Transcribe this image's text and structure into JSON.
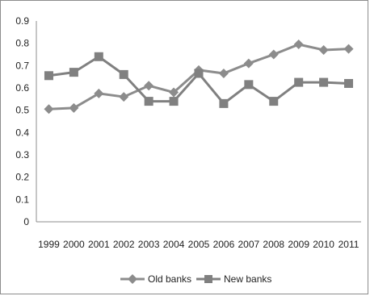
{
  "chart_data": {
    "type": "line",
    "title": "",
    "xlabel": "",
    "ylabel": "",
    "x": [
      "1999",
      "2000",
      "2001",
      "2002",
      "2003",
      "2004",
      "2005",
      "2006",
      "2007",
      "2008",
      "2009",
      "2010",
      "2011"
    ],
    "ylim": [
      0,
      0.9
    ],
    "yticks": [
      "0",
      "0.1",
      "0.2",
      "0.3",
      "0.4",
      "0.5",
      "0.6",
      "0.7",
      "0.8",
      "0.9"
    ],
    "grid": false,
    "legend_position": "bottom",
    "series": [
      {
        "name": "Old banks",
        "marker": "diamond",
        "color": "#8c8c8c",
        "values": [
          0.505,
          0.51,
          0.575,
          0.56,
          0.61,
          0.58,
          0.68,
          0.665,
          0.71,
          0.75,
          0.795,
          0.77,
          0.775
        ]
      },
      {
        "name": "New banks",
        "marker": "square",
        "color": "#808080",
        "values": [
          0.655,
          0.67,
          0.74,
          0.66,
          0.54,
          0.54,
          0.665,
          0.53,
          0.615,
          0.54,
          0.625,
          0.625,
          0.62
        ]
      }
    ]
  }
}
